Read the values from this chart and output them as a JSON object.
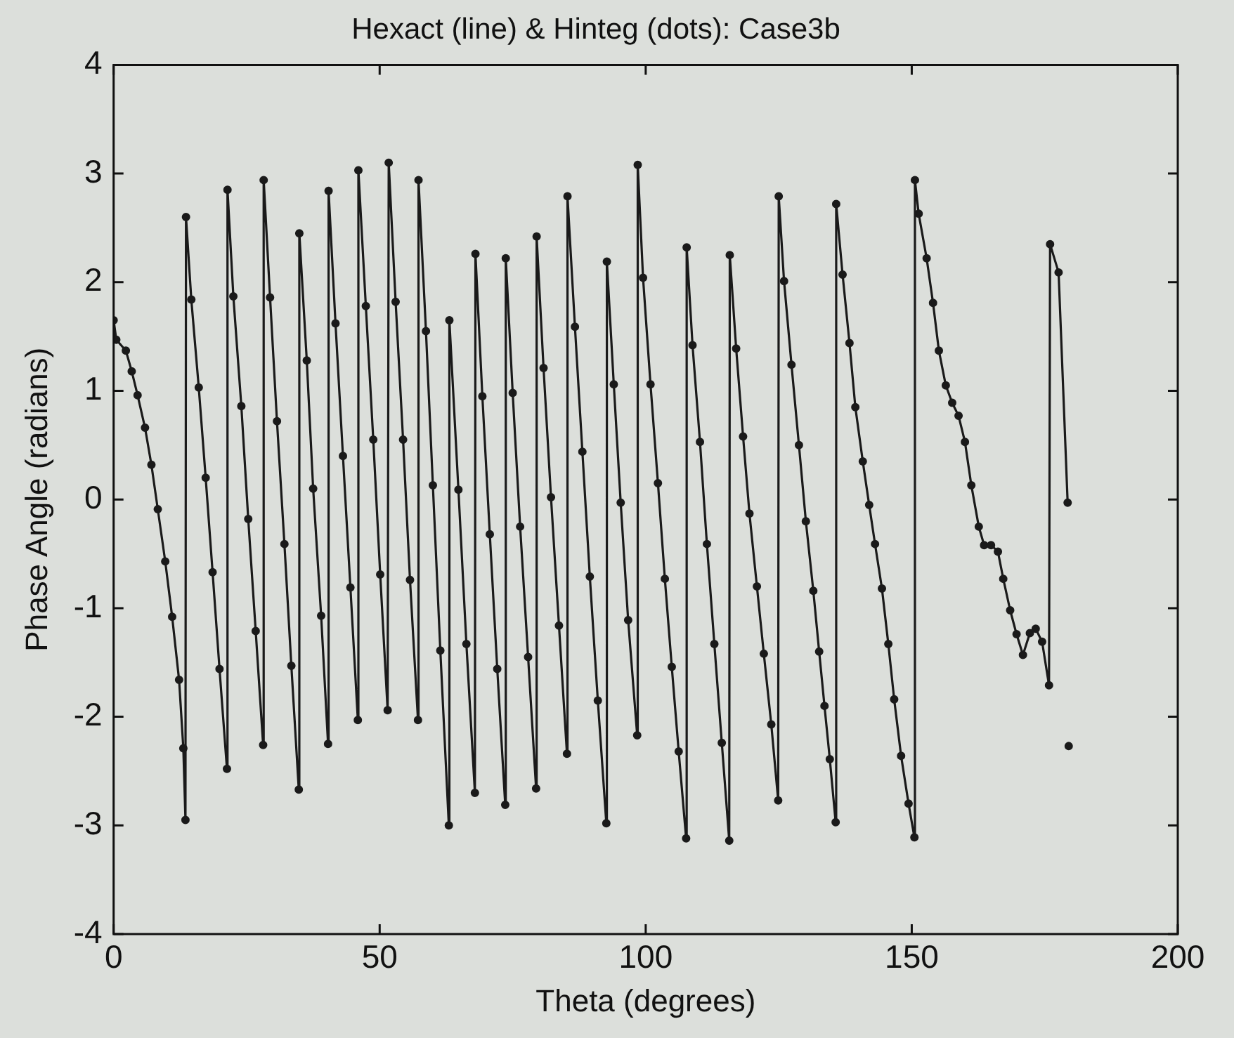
{
  "chart_data": {
    "type": "line",
    "title": "Hexact (line) & Hinteg (dots): Case3b",
    "xlabel": "Theta (degrees)",
    "ylabel": "Phase Angle (radians)",
    "xlim": [
      0,
      200
    ],
    "xticks": [
      0,
      50,
      100,
      150,
      200
    ],
    "ylim": [
      -4,
      4
    ],
    "yticks": [
      -4,
      -3,
      -2,
      -1,
      0,
      1,
      2,
      3,
      4
    ],
    "grid": false,
    "legend": false,
    "marker": "circle",
    "line_style": "solid",
    "series": [
      {
        "type": "line",
        "color": "#1a1a1a",
        "x": [
          0,
          0.5,
          2.3,
          3.4,
          4.5,
          5.9,
          7.1,
          8.3,
          9.7,
          11.0,
          12.3,
          13.1,
          13.5,
          13.6,
          14.6,
          16.0,
          17.3,
          18.6,
          19.9,
          21.3,
          21.4,
          22.5,
          24.0,
          25.3,
          26.7,
          28.1,
          28.2,
          29.4,
          30.7,
          32.1,
          33.4,
          34.8,
          34.9,
          36.3,
          37.5,
          39.0,
          40.3,
          40.4,
          41.7,
          43.1,
          44.5,
          45.9,
          46.0,
          47.4,
          48.8,
          50.1,
          51.5,
          51.7,
          53.0,
          54.4,
          55.7,
          57.2,
          57.3,
          58.7,
          60.0,
          61.4,
          63.0,
          63.1,
          64.8,
          66.3,
          67.9,
          68.0,
          69.3,
          70.7,
          72.1,
          73.6,
          73.7,
          75.0,
          76.4,
          77.9,
          79.4,
          79.5,
          80.8,
          82.2,
          83.7,
          85.2,
          85.3,
          86.7,
          88.1,
          89.5,
          91.0,
          92.6,
          92.7,
          94.0,
          95.3,
          96.7,
          98.4,
          98.5,
          99.5,
          100.9,
          102.3,
          103.6,
          104.9,
          106.2,
          107.6,
          107.7,
          108.8,
          110.2,
          111.5,
          112.9,
          114.3,
          115.7,
          115.8,
          117.0,
          118.3,
          119.5,
          120.9,
          122.2,
          123.6,
          124.9,
          125.0,
          126.0,
          127.4,
          128.8,
          130.1,
          131.5,
          132.6,
          133.6,
          134.6,
          135.7,
          135.8,
          137.0,
          138.3,
          139.4,
          140.8,
          142.0,
          143.1,
          144.4,
          145.6,
          146.7,
          148.0,
          149.4,
          150.5,
          150.6,
          151.3,
          152.8,
          154.0,
          155.1,
          156.4,
          157.6,
          158.8,
          160.0,
          161.2,
          162.6,
          163.6,
          164.9,
          166.2,
          167.2,
          168.5,
          169.7,
          170.9,
          172.2,
          173.3,
          174.5,
          175.8,
          176.0,
          177.6,
          179.3
        ],
        "values": [
          1.65,
          1.47,
          1.37,
          1.18,
          0.96,
          0.66,
          0.32,
          -0.09,
          -0.57,
          -1.08,
          -1.66,
          -2.29,
          -2.95,
          2.6,
          1.84,
          1.03,
          0.2,
          -0.67,
          -1.56,
          -2.48,
          2.85,
          1.87,
          0.86,
          -0.18,
          -1.21,
          -2.26,
          2.94,
          1.86,
          0.72,
          -0.41,
          -1.53,
          -2.67,
          2.45,
          1.28,
          0.1,
          -1.07,
          -2.25,
          2.84,
          1.62,
          0.4,
          -0.81,
          -2.03,
          3.03,
          1.78,
          0.55,
          -0.69,
          -1.94,
          3.1,
          1.82,
          0.55,
          -0.74,
          -2.03,
          2.94,
          1.55,
          0.13,
          -1.39,
          -3.0,
          1.65,
          0.09,
          -1.33,
          -2.7,
          2.26,
          0.95,
          -0.32,
          -1.56,
          -2.81,
          2.22,
          0.98,
          -0.25,
          -1.45,
          -2.66,
          2.42,
          1.21,
          0.02,
          -1.16,
          -2.34,
          2.79,
          1.59,
          0.44,
          -0.71,
          -1.85,
          -2.98,
          2.19,
          1.06,
          -0.03,
          -1.11,
          -2.17,
          3.08,
          2.04,
          1.06,
          0.15,
          -0.73,
          -1.54,
          -2.32,
          -3.12,
          2.32,
          1.42,
          0.53,
          -0.41,
          -1.33,
          -2.24,
          -3.14,
          2.25,
          1.39,
          0.58,
          -0.13,
          -0.8,
          -1.42,
          -2.07,
          -2.77,
          2.79,
          2.01,
          1.24,
          0.5,
          -0.2,
          -0.84,
          -1.4,
          -1.9,
          -2.39,
          -2.97,
          2.72,
          2.07,
          1.44,
          0.85,
          0.35,
          -0.05,
          -0.41,
          -0.82,
          -1.33,
          -1.84,
          -2.36,
          -2.8,
          -3.11,
          2.94,
          2.63,
          2.22,
          1.81,
          1.37,
          1.05,
          0.89,
          0.77,
          0.53,
          0.13,
          -0.25,
          -0.42,
          -0.42,
          -0.48,
          -0.73,
          -1.02,
          -1.24,
          -1.43,
          -1.23,
          -1.19,
          -1.31,
          -1.71,
          2.35,
          2.09,
          -0.03
        ]
      },
      {
        "type": "scatter",
        "color": "#1a1a1a",
        "x": [
          179.5
        ],
        "values": [
          -2.27
        ]
      }
    ]
  }
}
